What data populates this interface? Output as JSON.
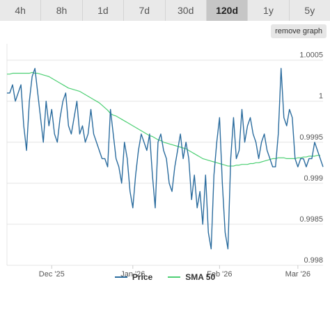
{
  "timeframes": [
    {
      "label": "4h",
      "active": false
    },
    {
      "label": "8h",
      "active": false
    },
    {
      "label": "1d",
      "active": false
    },
    {
      "label": "7d",
      "active": false
    },
    {
      "label": "30d",
      "active": false
    },
    {
      "label": "120d",
      "active": true
    },
    {
      "label": "1y",
      "active": false
    },
    {
      "label": "5y",
      "active": false
    }
  ],
  "remove_graph_label": "remove graph",
  "chart_data": {
    "type": "line",
    "ylim": [
      0.998,
      1.0007
    ],
    "y_ticks": [
      {
        "value": 0.998,
        "label": "0.998"
      },
      {
        "value": 0.9985,
        "label": "0.9985"
      },
      {
        "value": 0.999,
        "label": "0.999"
      },
      {
        "value": 0.9995,
        "label": "0.9995"
      },
      {
        "value": 1.0,
        "label": "1"
      },
      {
        "value": 1.0005,
        "label": "1.0005"
      }
    ],
    "x_ticks": [
      {
        "index": 16,
        "label": "Dec '25"
      },
      {
        "index": 45,
        "label": "Jan '26"
      },
      {
        "index": 76,
        "label": "Feb '26"
      },
      {
        "index": 104,
        "label": "Mar '26"
      }
    ],
    "grid": true,
    "legend": "bottom-center",
    "series": [
      {
        "name": "Price",
        "color": "#2b6c9e",
        "values": [
          1.0001,
          1.0001,
          1.0002,
          1.0,
          1.0001,
          1.0002,
          0.9997,
          0.9994,
          1.0,
          1.0003,
          1.0004,
          1.0001,
          0.9998,
          0.9995,
          1.0,
          0.9997,
          0.9999,
          0.9996,
          0.9995,
          0.9998,
          1.0,
          1.0001,
          0.9997,
          0.9996,
          0.9998,
          1.0,
          0.9996,
          0.9997,
          0.9995,
          0.9996,
          0.9999,
          0.9996,
          0.9995,
          0.9994,
          0.9993,
          0.9993,
          0.9992,
          0.9999,
          0.9996,
          0.9993,
          0.9992,
          0.999,
          0.9995,
          0.9993,
          0.9989,
          0.9987,
          0.9991,
          0.9994,
          0.9996,
          0.9995,
          0.9994,
          0.9996,
          0.9991,
          0.9987,
          0.9995,
          0.9996,
          0.9994,
          0.9993,
          0.999,
          0.9989,
          0.9992,
          0.9994,
          0.9996,
          0.9993,
          0.9995,
          0.9993,
          0.9988,
          0.9991,
          0.9987,
          0.9989,
          0.9985,
          0.9991,
          0.9984,
          0.9982,
          0.9991,
          0.9995,
          0.9998,
          0.999,
          0.9984,
          0.9982,
          0.9993,
          0.9998,
          0.9993,
          0.9994,
          0.9999,
          0.9995,
          0.9997,
          0.9998,
          0.9996,
          0.9995,
          0.9993,
          0.9995,
          0.9996,
          0.9994,
          0.9993,
          0.9992,
          0.9992,
          0.9996,
          1.0004,
          0.9998,
          0.9997,
          0.9999,
          0.9998,
          0.9993,
          0.9992,
          0.9993,
          0.9993,
          0.9992,
          0.9993,
          0.9993,
          0.9995,
          0.9994,
          0.9993,
          0.9992
        ]
      },
      {
        "name": "SMA 50",
        "color": "#4ccf73",
        "values": [
          1.00033,
          1.00033,
          1.00034,
          1.00034,
          1.00034,
          1.00034,
          1.00034,
          1.00034,
          1.00034,
          1.00035,
          1.00034,
          1.00034,
          1.00033,
          1.00032,
          1.00031,
          1.0003,
          1.00028,
          1.00026,
          1.00024,
          1.00022,
          1.0002,
          1.00018,
          1.00016,
          1.00015,
          1.00014,
          1.00013,
          1.00012,
          1.0001,
          1.00008,
          1.00006,
          1.00004,
          1.00002,
          1.0,
          0.99998,
          0.99995,
          0.99992,
          0.99989,
          0.99985,
          0.99983,
          0.99982,
          0.9998,
          0.99978,
          0.99976,
          0.99974,
          0.99972,
          0.9997,
          0.99968,
          0.99966,
          0.99964,
          0.99962,
          0.9996,
          0.99958,
          0.99957,
          0.99955,
          0.99953,
          0.99952,
          0.9995,
          0.99949,
          0.99948,
          0.99947,
          0.99946,
          0.99945,
          0.99944,
          0.99943,
          0.99942,
          0.9994,
          0.99938,
          0.99936,
          0.99934,
          0.99932,
          0.9993,
          0.99929,
          0.99928,
          0.99927,
          0.99926,
          0.99925,
          0.99924,
          0.99923,
          0.99922,
          0.99921,
          0.99921,
          0.99921,
          0.99922,
          0.99922,
          0.99923,
          0.99923,
          0.99923,
          0.99924,
          0.99924,
          0.99925,
          0.99925,
          0.99926,
          0.99927,
          0.99928,
          0.99929,
          0.9993,
          0.9993,
          0.99931,
          0.99931,
          0.99931,
          0.9993,
          0.9993,
          0.9993,
          0.9993,
          0.99931,
          0.99931,
          0.99932,
          0.99932,
          0.99933,
          0.99933,
          0.99933,
          0.99934,
          0.99934
        ]
      }
    ]
  }
}
